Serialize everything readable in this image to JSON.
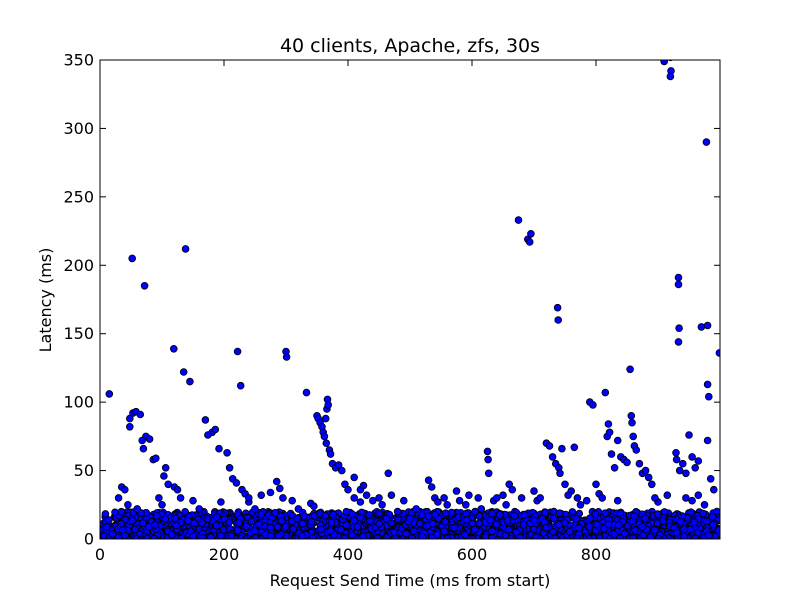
{
  "chart_data": {
    "type": "scatter",
    "title": "40 clients, Apache, zfs, 30s",
    "xlabel": "Request Send Time (ms from start)",
    "ylabel": "Latency (ms)",
    "xlim": [
      0,
      1000
    ],
    "ylim": [
      0,
      350
    ],
    "xticks": [
      0,
      200,
      400,
      600,
      800
    ],
    "yticks": [
      0,
      50,
      100,
      150,
      200,
      250,
      300,
      350
    ],
    "grid": false,
    "legend": "none",
    "marker_color": "#0000ff",
    "marker_edge_color": "#000000",
    "series": [
      {
        "points": [
          [
            15,
            106
          ],
          [
            52,
            205
          ],
          [
            72,
            185
          ],
          [
            138,
            212
          ],
          [
            222,
            137
          ],
          [
            227,
            112
          ],
          [
            300,
            137
          ],
          [
            301,
            133
          ],
          [
            333,
            107
          ],
          [
            119,
            139
          ],
          [
            135,
            122
          ],
          [
            145,
            115
          ],
          [
            170,
            87
          ],
          [
            181,
            78
          ],
          [
            186,
            80
          ],
          [
            174,
            76
          ],
          [
            192,
            66
          ],
          [
            48,
            82
          ],
          [
            48,
            88
          ],
          [
            53,
            92
          ],
          [
            58,
            93
          ],
          [
            65,
            91
          ],
          [
            74,
            75
          ],
          [
            80,
            73
          ],
          [
            68,
            72
          ],
          [
            70,
            66
          ],
          [
            86,
            58
          ],
          [
            90,
            59
          ],
          [
            106,
            52
          ],
          [
            103,
            46
          ],
          [
            110,
            40
          ],
          [
            120,
            38
          ],
          [
            125,
            36
          ],
          [
            130,
            30
          ],
          [
            205,
            63
          ],
          [
            209,
            52
          ],
          [
            214,
            44
          ],
          [
            220,
            41
          ],
          [
            229,
            36
          ],
          [
            234,
            33
          ],
          [
            240,
            27
          ],
          [
            250,
            22
          ],
          [
            260,
            18
          ],
          [
            275,
            34
          ],
          [
            285,
            42
          ],
          [
            290,
            37
          ],
          [
            295,
            30
          ],
          [
            350,
            90
          ],
          [
            352,
            88
          ],
          [
            355,
            85
          ],
          [
            358,
            82
          ],
          [
            360,
            78
          ],
          [
            362,
            75
          ],
          [
            364,
            88
          ],
          [
            366,
            95
          ],
          [
            367,
            102
          ],
          [
            368,
            98
          ],
          [
            365,
            70
          ],
          [
            370,
            65
          ],
          [
            372,
            62
          ],
          [
            375,
            55
          ],
          [
            380,
            52
          ],
          [
            385,
            54
          ],
          [
            390,
            50
          ],
          [
            395,
            40
          ],
          [
            400,
            36
          ],
          [
            410,
            30
          ],
          [
            420,
            27
          ],
          [
            430,
            32
          ],
          [
            440,
            28
          ],
          [
            455,
            25
          ],
          [
            465,
            48
          ],
          [
            470,
            32
          ],
          [
            480,
            20
          ],
          [
            500,
            15
          ],
          [
            530,
            43
          ],
          [
            535,
            38
          ],
          [
            540,
            30
          ],
          [
            560,
            25
          ],
          [
            575,
            35
          ],
          [
            580,
            28
          ],
          [
            595,
            32
          ],
          [
            605,
            20
          ],
          [
            625,
            64
          ],
          [
            626,
            58
          ],
          [
            627,
            48
          ],
          [
            635,
            28
          ],
          [
            660,
            40
          ],
          [
            665,
            36
          ],
          [
            675,
            233
          ],
          [
            690,
            219
          ],
          [
            695,
            223
          ],
          [
            693,
            217
          ],
          [
            738,
            169
          ],
          [
            739,
            160
          ],
          [
            720,
            70
          ],
          [
            725,
            68
          ],
          [
            730,
            60
          ],
          [
            735,
            55
          ],
          [
            740,
            52
          ],
          [
            742,
            48
          ],
          [
            745,
            66
          ],
          [
            750,
            40
          ],
          [
            760,
            35
          ],
          [
            765,
            67
          ],
          [
            770,
            30
          ],
          [
            790,
            100
          ],
          [
            795,
            98
          ],
          [
            805,
            33
          ],
          [
            815,
            107
          ],
          [
            818,
            75
          ],
          [
            820,
            84
          ],
          [
            822,
            78
          ],
          [
            825,
            62
          ],
          [
            830,
            52
          ],
          [
            835,
            72
          ],
          [
            840,
            60
          ],
          [
            845,
            58
          ],
          [
            850,
            56
          ],
          [
            855,
            124
          ],
          [
            857,
            90
          ],
          [
            858,
            85
          ],
          [
            860,
            75
          ],
          [
            862,
            68
          ],
          [
            865,
            65
          ],
          [
            870,
            55
          ],
          [
            875,
            48
          ],
          [
            880,
            50
          ],
          [
            885,
            45
          ],
          [
            890,
            40
          ],
          [
            900,
            27
          ],
          [
            910,
            349
          ],
          [
            920,
            352
          ],
          [
            921,
            342
          ],
          [
            920,
            338
          ],
          [
            929,
            63
          ],
          [
            933,
            191
          ],
          [
            933,
            186
          ],
          [
            934,
            154
          ],
          [
            933,
            144
          ],
          [
            930,
            58
          ],
          [
            935,
            50
          ],
          [
            940,
            55
          ],
          [
            945,
            48
          ],
          [
            950,
            76
          ],
          [
            955,
            60
          ],
          [
            960,
            52
          ],
          [
            965,
            57
          ],
          [
            970,
            155
          ],
          [
            978,
            290
          ],
          [
            980,
            156
          ],
          [
            980,
            113
          ],
          [
            982,
            104
          ],
          [
            980,
            72
          ],
          [
            985,
            44
          ],
          [
            990,
            36
          ],
          [
            995,
            20
          ],
          [
            999,
            136
          ],
          [
            30,
            30
          ],
          [
            35,
            38
          ],
          [
            40,
            36
          ],
          [
            45,
            25
          ],
          [
            60,
            22
          ],
          [
            95,
            30
          ],
          [
            100,
            25
          ],
          [
            150,
            28
          ],
          [
            160,
            22
          ],
          [
            195,
            27
          ],
          [
            240,
            30
          ],
          [
            260,
            32
          ],
          [
            310,
            28
          ],
          [
            320,
            22
          ],
          [
            340,
            26
          ],
          [
            345,
            24
          ],
          [
            410,
            45
          ],
          [
            420,
            36
          ],
          [
            425,
            39
          ],
          [
            450,
            30
          ],
          [
            490,
            28
          ],
          [
            510,
            22
          ],
          [
            545,
            27
          ],
          [
            555,
            30
          ],
          [
            590,
            25
          ],
          [
            610,
            30
          ],
          [
            615,
            22
          ],
          [
            640,
            30
          ],
          [
            650,
            32
          ],
          [
            655,
            25
          ],
          [
            680,
            30
          ],
          [
            700,
            35
          ],
          [
            705,
            28
          ],
          [
            710,
            30
          ],
          [
            755,
            32
          ],
          [
            775,
            25
          ],
          [
            785,
            28
          ],
          [
            800,
            40
          ],
          [
            810,
            30
          ],
          [
            835,
            28
          ],
          [
            895,
            30
          ],
          [
            915,
            32
          ],
          [
            945,
            30
          ],
          [
            955,
            28
          ],
          [
            965,
            32
          ],
          [
            975,
            25
          ]
        ]
      }
    ],
    "dense_band": {
      "note": "Thousands of overlapping points fill the 0–20 ms band across the full time range",
      "x_range": [
        0,
        1000
      ],
      "y_range": [
        0,
        20
      ]
    }
  }
}
